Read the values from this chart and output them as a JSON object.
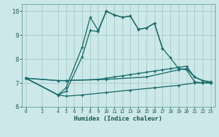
{
  "xlabel": "Humidex (Indice chaleur)",
  "bg_color": "#cce8e8",
  "grid_color": "#aacccc",
  "line_color": "#1a6b6b",
  "xlim": [
    -0.5,
    23.5
  ],
  "ylim": [
    6.0,
    10.3
  ],
  "yticks": [
    6,
    7,
    8,
    9,
    10
  ],
  "xticks": [
    0,
    2,
    4,
    5,
    6,
    7,
    8,
    9,
    10,
    11,
    12,
    13,
    14,
    15,
    16,
    17,
    18,
    19,
    20,
    21,
    22,
    23
  ],
  "line1_x": [
    0,
    4,
    5,
    7,
    8,
    9,
    10,
    11,
    12,
    13,
    14,
    15,
    16,
    17,
    18,
    19,
    20,
    21,
    22,
    23
  ],
  "line1_y": [
    7.2,
    6.5,
    6.8,
    8.5,
    9.75,
    9.2,
    10.0,
    9.85,
    9.75,
    9.8,
    9.25,
    9.3,
    9.5,
    8.45,
    8.05,
    7.6,
    7.55,
    7.05,
    7.0,
    7.0
  ],
  "line2_x": [
    0,
    4,
    5,
    7,
    8,
    9,
    10,
    11,
    12,
    13,
    14,
    15,
    16,
    17
  ],
  "line2_y": [
    7.2,
    6.5,
    6.65,
    8.1,
    9.2,
    9.15,
    10.0,
    9.85,
    9.75,
    9.8,
    9.25,
    9.3,
    9.5,
    8.45
  ],
  "line3_x": [
    0,
    4,
    5,
    9,
    10,
    11,
    12,
    13,
    14,
    15,
    16,
    17,
    18,
    19,
    20,
    21,
    22,
    23
  ],
  "line3_y": [
    7.2,
    7.1,
    7.1,
    7.15,
    7.2,
    7.25,
    7.3,
    7.35,
    7.4,
    7.45,
    7.5,
    7.55,
    7.6,
    7.65,
    7.7,
    7.25,
    7.1,
    7.05
  ],
  "line4_x": [
    0,
    4,
    5,
    10,
    15,
    19,
    20,
    21,
    22,
    23
  ],
  "line4_y": [
    7.2,
    7.1,
    7.1,
    7.15,
    7.25,
    7.55,
    7.6,
    7.25,
    7.1,
    7.0
  ],
  "line5_x": [
    0,
    4,
    5,
    7,
    10,
    13,
    16,
    19,
    21,
    22,
    23
  ],
  "line5_y": [
    7.2,
    6.5,
    6.45,
    6.5,
    6.6,
    6.7,
    6.8,
    6.9,
    7.0,
    7.0,
    7.0
  ]
}
